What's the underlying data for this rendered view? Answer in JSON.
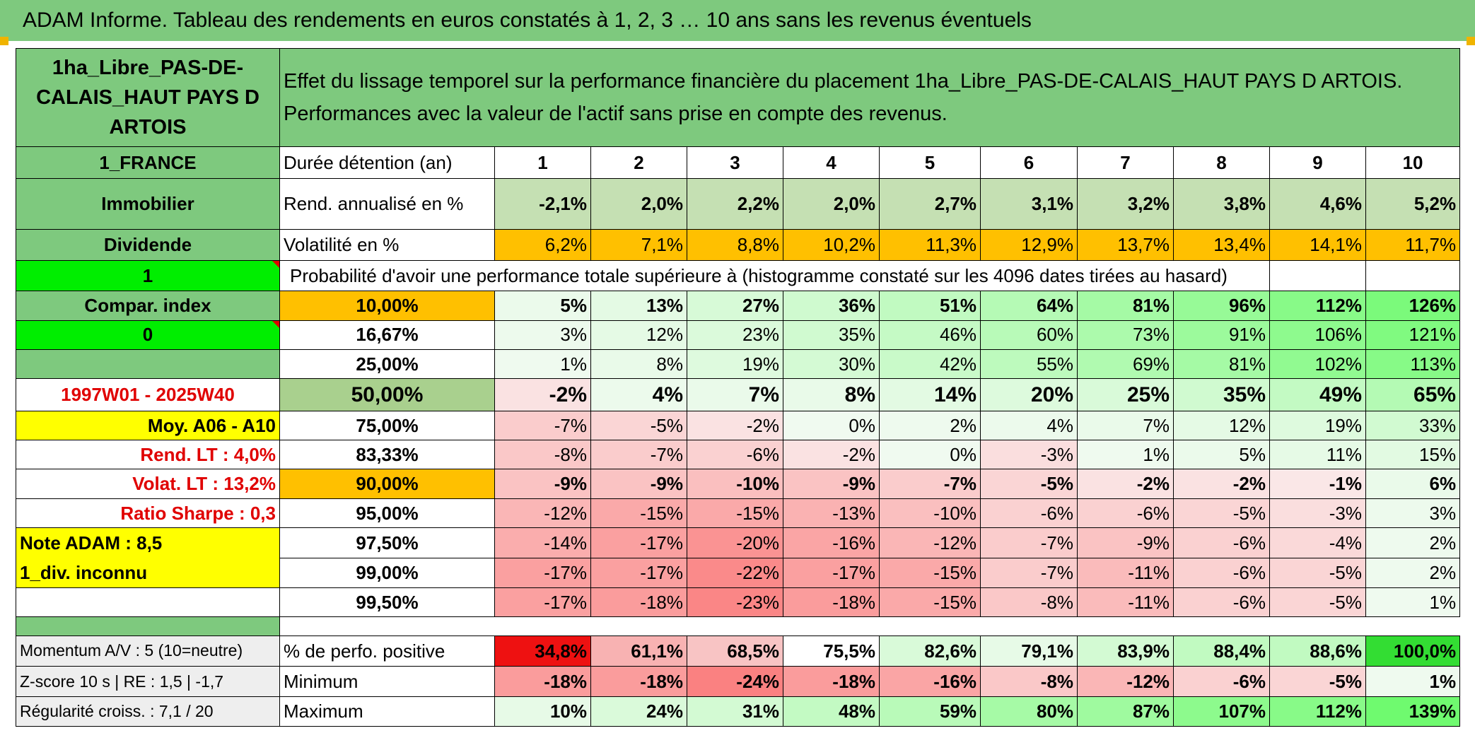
{
  "title": "ADAM Informe. Tableau des rendements en euros constatés à 1, 2, 3 … 10 ans sans les revenus éventuels",
  "left_panel": {
    "asset_name": "1ha_Libre_PAS-DE-CALAIS_HAUT PAYS D ARTOIS",
    "country": "1_FRANCE",
    "category": "Immobilier",
    "type": "Dividende",
    "flag1": "1",
    "compar_index": "Compar. index",
    "flag0": "0",
    "period": "1997W01 - 2025W40",
    "moy": "Moy. A06 - A10",
    "rend_lt": "Rend. LT :   4,0%",
    "volat_lt": "Volat. LT :   13,2%",
    "ratio_sharpe": "Ratio Sharpe :    0,3",
    "note_adam": "Note ADAM : 8,5",
    "div_inconnu": "1_div. inconnu",
    "momentum": "Momentum A/V : 5 (10=neutre)",
    "zscore": "Z-score 10 s | RE : 1,5 | -1,7",
    "regularite": "Régularité croiss. : 7,1 / 20"
  },
  "description": {
    "line1": "Effet du lissage temporel sur la performance financière du placement 1ha_Libre_PAS-DE-CALAIS_HAUT PAYS D ARTOIS.",
    "line2": "Performances avec la valeur de l'actif sans prise en compte des revenus."
  },
  "labels": {
    "duree": "Durée détention (an)",
    "rend": "Rend. annualisé en %",
    "vol": "Volatilité en %",
    "prob": "Probabilité d'avoir une performance totale supérieure à (histogramme constaté sur les 4096 dates tirées au hasard)",
    "pct_pos": "% de perfo. positive",
    "min": "Minimum",
    "max": "Maximum"
  },
  "years": [
    "1",
    "2",
    "3",
    "4",
    "5",
    "6",
    "7",
    "8",
    "9",
    "10"
  ],
  "rendement": [
    "-2,1%",
    "2,0%",
    "2,2%",
    "2,0%",
    "2,7%",
    "3,1%",
    "3,2%",
    "3,8%",
    "4,6%",
    "5,2%"
  ],
  "volatilite": [
    "6,2%",
    "7,1%",
    "8,8%",
    "10,2%",
    "11,3%",
    "12,9%",
    "13,7%",
    "13,4%",
    "14,1%",
    "11,7%"
  ],
  "prob_rows": [
    {
      "level": "10,00%",
      "values": [
        "5%",
        "13%",
        "27%",
        "36%",
        "51%",
        "64%",
        "81%",
        "96%",
        "112%",
        "126%"
      ]
    },
    {
      "level": "16,67%",
      "values": [
        "3%",
        "12%",
        "23%",
        "35%",
        "46%",
        "60%",
        "73%",
        "91%",
        "106%",
        "121%"
      ]
    },
    {
      "level": "25,00%",
      "values": [
        "1%",
        "8%",
        "19%",
        "30%",
        "42%",
        "55%",
        "69%",
        "81%",
        "102%",
        "113%"
      ]
    },
    {
      "level": "50,00%",
      "values": [
        "-2%",
        "4%",
        "7%",
        "8%",
        "14%",
        "20%",
        "25%",
        "35%",
        "49%",
        "65%"
      ]
    },
    {
      "level": "75,00%",
      "values": [
        "-7%",
        "-5%",
        "-2%",
        "0%",
        "2%",
        "4%",
        "7%",
        "12%",
        "19%",
        "33%"
      ]
    },
    {
      "level": "83,33%",
      "values": [
        "-8%",
        "-7%",
        "-6%",
        "-2%",
        "0%",
        "-3%",
        "1%",
        "5%",
        "11%",
        "15%"
      ]
    },
    {
      "level": "90,00%",
      "values": [
        "-9%",
        "-9%",
        "-10%",
        "-9%",
        "-7%",
        "-5%",
        "-2%",
        "-2%",
        "-1%",
        "6%"
      ]
    },
    {
      "level": "95,00%",
      "values": [
        "-12%",
        "-15%",
        "-15%",
        "-13%",
        "-10%",
        "-6%",
        "-6%",
        "-5%",
        "-3%",
        "3%"
      ]
    },
    {
      "level": "97,50%",
      "values": [
        "-14%",
        "-17%",
        "-20%",
        "-16%",
        "-12%",
        "-7%",
        "-9%",
        "-6%",
        "-4%",
        "2%"
      ]
    },
    {
      "level": "99,00%",
      "values": [
        "-17%",
        "-17%",
        "-22%",
        "-17%",
        "-15%",
        "-7%",
        "-11%",
        "-6%",
        "-5%",
        "2%"
      ]
    },
    {
      "level": "99,50%",
      "values": [
        "-17%",
        "-18%",
        "-23%",
        "-18%",
        "-15%",
        "-8%",
        "-11%",
        "-6%",
        "-5%",
        "1%"
      ]
    }
  ],
  "pct_positive": [
    "34,8%",
    "61,1%",
    "68,5%",
    "75,5%",
    "82,6%",
    "79,1%",
    "83,9%",
    "88,4%",
    "88,6%",
    "100,0%"
  ],
  "minimum": [
    "-18%",
    "-18%",
    "-24%",
    "-18%",
    "-16%",
    "-8%",
    "-12%",
    "-6%",
    "-5%",
    "1%"
  ],
  "maximum": [
    "10%",
    "24%",
    "31%",
    "48%",
    "59%",
    "80%",
    "87%",
    "107%",
    "112%",
    "139%"
  ],
  "colors": {
    "green": "#7ec97e",
    "light_green": "#c5e0b3",
    "bright_green": "#00ee00",
    "orange": "#ffc000",
    "yellow": "#ffff00",
    "red_text": "#e00000"
  }
}
